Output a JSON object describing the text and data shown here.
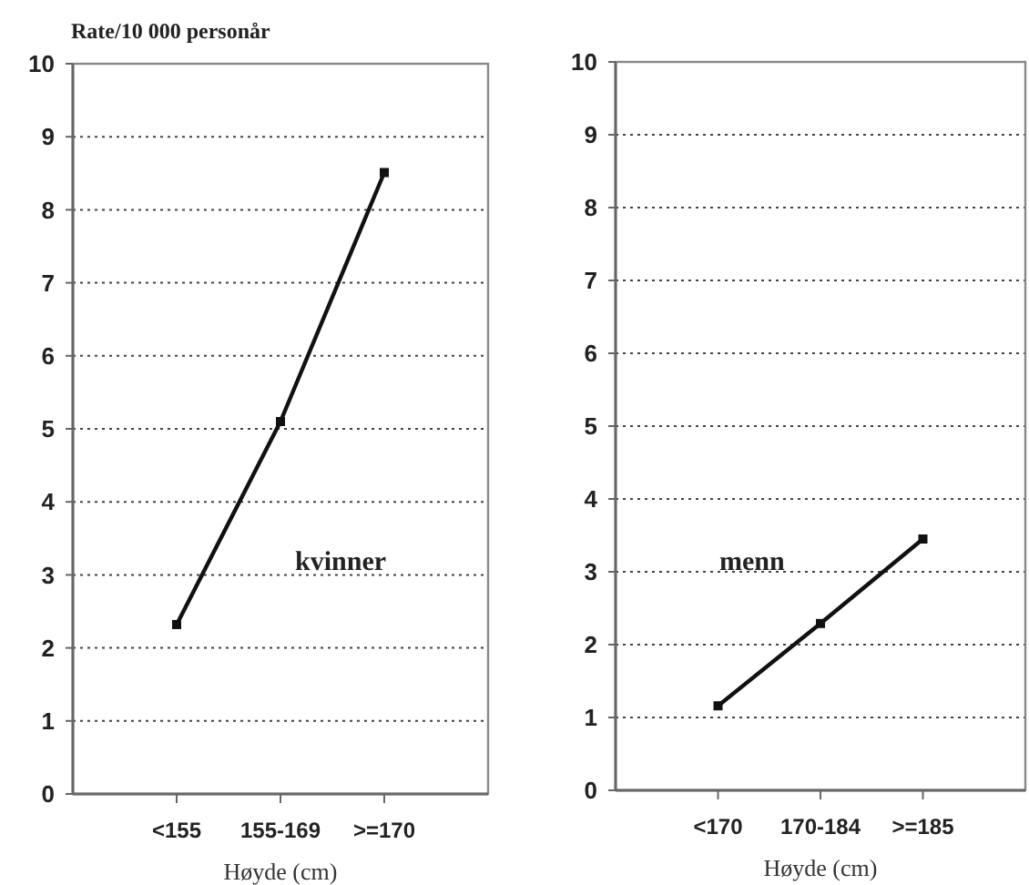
{
  "chart_data": [
    {
      "type": "line",
      "ylabel": "Rate/10 000 personår",
      "xlabel": "Høyde (cm)",
      "categories": [
        "<155",
        "155-169",
        ">=170"
      ],
      "series": [
        {
          "name": "kvinner",
          "color": "#111111",
          "values": [
            2.32,
            5.1,
            8.51
          ]
        }
      ],
      "ylim": [
        0,
        10
      ],
      "yticks": [
        0,
        1,
        2,
        3,
        4,
        5,
        6,
        7,
        8,
        9,
        10
      ],
      "grid": "y",
      "marker": "square",
      "line_style": "solid"
    },
    {
      "type": "line",
      "xlabel": "Høyde (cm)",
      "categories": [
        "<170",
        "170-184",
        ">=185"
      ],
      "series": [
        {
          "name": "menn",
          "color": "#111111",
          "values": [
            1.16,
            2.29,
            3.45
          ]
        }
      ],
      "ylim": [
        0,
        10
      ],
      "yticks": [
        0,
        1,
        2,
        3,
        4,
        5,
        6,
        7,
        8,
        9,
        10
      ],
      "grid": "y",
      "marker": "square",
      "line_style": "solid"
    }
  ]
}
